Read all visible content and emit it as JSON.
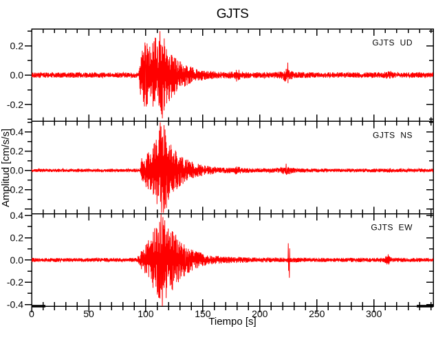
{
  "title": "GJTS",
  "axes": {
    "x_label": "Tiempo [s]",
    "y_label": "Amplitud [cm/s/s]",
    "axis_color": "#000000",
    "background_color": "#ffffff"
  },
  "chart_data": {
    "type": "line",
    "title": "GJTS",
    "xlabel": "Tiempo [s]",
    "ylabel": "Amplitud [cm/s/s]",
    "x_range": [
      0,
      352
    ],
    "x_major_ticks": [
      0,
      50,
      100,
      150,
      200,
      250,
      300
    ],
    "x_major_tick_labels": [
      "0",
      "50",
      "100",
      "150",
      "200",
      "250",
      "300"
    ],
    "x_minor_tick_step": 10,
    "y_minor_tick_step": 0.1,
    "trace_color": "#ff0000",
    "grid": false,
    "legend_position": "inside-top-right-per-panel",
    "samples_per_trace": 1500,
    "description": "Three-component earthquake seismogram for station GJTS; strong shaking begins near t=95 s, peaks near t=113 s, coda decays by t=150 s; small aftershock bursts near t=180 s, t=224 s and t=313 s.",
    "series": [
      {
        "name": "GJTS UD",
        "display_label": "GJTS  UD",
        "component": "UD",
        "ylim": [
          -0.315,
          0.315
        ],
        "y_ticks": [
          {
            "v": 0.2,
            "label": "0.2"
          },
          {
            "v": 0.0,
            "label": "0.0"
          },
          {
            "v": -0.2,
            "label": "-0.2"
          }
        ],
        "noise_floor": 0.018,
        "onset_time_s": 95,
        "peak_time_s": 113,
        "peak_amplitude": 0.3,
        "seed": 7,
        "envelope": [
          [
            0,
            0.018
          ],
          [
            94,
            0.018
          ],
          [
            95.5,
            0.16
          ],
          [
            98,
            0.21
          ],
          [
            101,
            0.25
          ],
          [
            104,
            0.2
          ],
          [
            107,
            0.27
          ],
          [
            110,
            0.24
          ],
          [
            113,
            0.3
          ],
          [
            116,
            0.26
          ],
          [
            119,
            0.2
          ],
          [
            123,
            0.155
          ],
          [
            127,
            0.12
          ],
          [
            132,
            0.09
          ],
          [
            138,
            0.062
          ],
          [
            145,
            0.045
          ],
          [
            152,
            0.032
          ],
          [
            160,
            0.026
          ],
          [
            170,
            0.022
          ],
          [
            178,
            0.026
          ],
          [
            180,
            0.05
          ],
          [
            183,
            0.032
          ],
          [
            187,
            0.022
          ],
          [
            200,
            0.02
          ],
          [
            216,
            0.022
          ],
          [
            220,
            0.035
          ],
          [
            223,
            0.05
          ],
          [
            226,
            0.035
          ],
          [
            230,
            0.022
          ],
          [
            260,
            0.018
          ],
          [
            308,
            0.019
          ],
          [
            313,
            0.028
          ],
          [
            318,
            0.019
          ],
          [
            352,
            0.018
          ]
        ],
        "spikes": [
          [
            112.5,
            0.3
          ],
          [
            114.5,
            -0.295
          ],
          [
            224.5,
            0.085
          ]
        ]
      },
      {
        "name": "GJTS NS",
        "display_label": "GJTS  NS",
        "component": "NS",
        "ylim": [
          -0.45,
          0.51
        ],
        "y_ticks": [
          {
            "v": 0.4,
            "label": "0.4"
          },
          {
            "v": 0.2,
            "label": "0.2"
          },
          {
            "v": 0.0,
            "label": "0.0"
          },
          {
            "v": -0.2,
            "label": "-0.2"
          },
          {
            "v": -0.4,
            "label": ""
          }
        ],
        "noise_floor": 0.018,
        "onset_time_s": 96,
        "peak_time_s": 113,
        "peak_amplitude": 0.5,
        "seed": 13,
        "envelope": [
          [
            0,
            0.018
          ],
          [
            95,
            0.018
          ],
          [
            96.5,
            0.13
          ],
          [
            100,
            0.17
          ],
          [
            104,
            0.22
          ],
          [
            108,
            0.3
          ],
          [
            111,
            0.38
          ],
          [
            113,
            0.5
          ],
          [
            115,
            0.44
          ],
          [
            117,
            0.47
          ],
          [
            119,
            0.33
          ],
          [
            122,
            0.27
          ],
          [
            126,
            0.21
          ],
          [
            130,
            0.165
          ],
          [
            135,
            0.125
          ],
          [
            140,
            0.095
          ],
          [
            147,
            0.065
          ],
          [
            155,
            0.045
          ],
          [
            165,
            0.032
          ],
          [
            177,
            0.028
          ],
          [
            180,
            0.045
          ],
          [
            184,
            0.028
          ],
          [
            200,
            0.022
          ],
          [
            216,
            0.025
          ],
          [
            220,
            0.04
          ],
          [
            224,
            0.045
          ],
          [
            228,
            0.03
          ],
          [
            235,
            0.022
          ],
          [
            260,
            0.019
          ],
          [
            310,
            0.02
          ],
          [
            314,
            0.024
          ],
          [
            320,
            0.019
          ],
          [
            352,
            0.018
          ]
        ],
        "spikes": [
          [
            112.8,
            0.5
          ],
          [
            114,
            -0.44
          ],
          [
            116,
            0.47
          ],
          [
            223,
            0.07
          ]
        ]
      },
      {
        "name": "GJTS EW",
        "display_label": "GJTS  EW",
        "component": "EW",
        "ylim": [
          -0.415,
          0.415
        ],
        "y_ticks": [
          {
            "v": 0.4,
            "label": "0.4"
          },
          {
            "v": 0.2,
            "label": "0.2"
          },
          {
            "v": 0.0,
            "label": "0.0"
          },
          {
            "v": -0.2,
            "label": "-0.2"
          },
          {
            "v": -0.4,
            "label": "-0.4"
          }
        ],
        "noise_floor": 0.018,
        "onset_time_s": 94,
        "peak_time_s": 114,
        "peak_amplitude": 0.41,
        "seed": 29,
        "envelope": [
          [
            0,
            0.018
          ],
          [
            92,
            0.018
          ],
          [
            94,
            0.05
          ],
          [
            97,
            0.1
          ],
          [
            100,
            0.14
          ],
          [
            103,
            0.19
          ],
          [
            106,
            0.25
          ],
          [
            109,
            0.32
          ],
          [
            112,
            0.4
          ],
          [
            115,
            0.41
          ],
          [
            118,
            0.36
          ],
          [
            121,
            0.31
          ],
          [
            124,
            0.27
          ],
          [
            128,
            0.21
          ],
          [
            132,
            0.17
          ],
          [
            136,
            0.13
          ],
          [
            141,
            0.095
          ],
          [
            147,
            0.07
          ],
          [
            153,
            0.05
          ],
          [
            160,
            0.038
          ],
          [
            170,
            0.03
          ],
          [
            180,
            0.028
          ],
          [
            195,
            0.023
          ],
          [
            210,
            0.021
          ],
          [
            222,
            0.022
          ],
          [
            240,
            0.02
          ],
          [
            260,
            0.019
          ],
          [
            308,
            0.02
          ],
          [
            312,
            0.045
          ],
          [
            316,
            0.02
          ],
          [
            352,
            0.018
          ]
        ],
        "spikes": [
          [
            113.5,
            0.41
          ],
          [
            114.7,
            -0.43
          ],
          [
            225,
            0.15
          ],
          [
            225.9,
            -0.16
          ],
          [
            312.5,
            0.05
          ]
        ]
      }
    ]
  }
}
